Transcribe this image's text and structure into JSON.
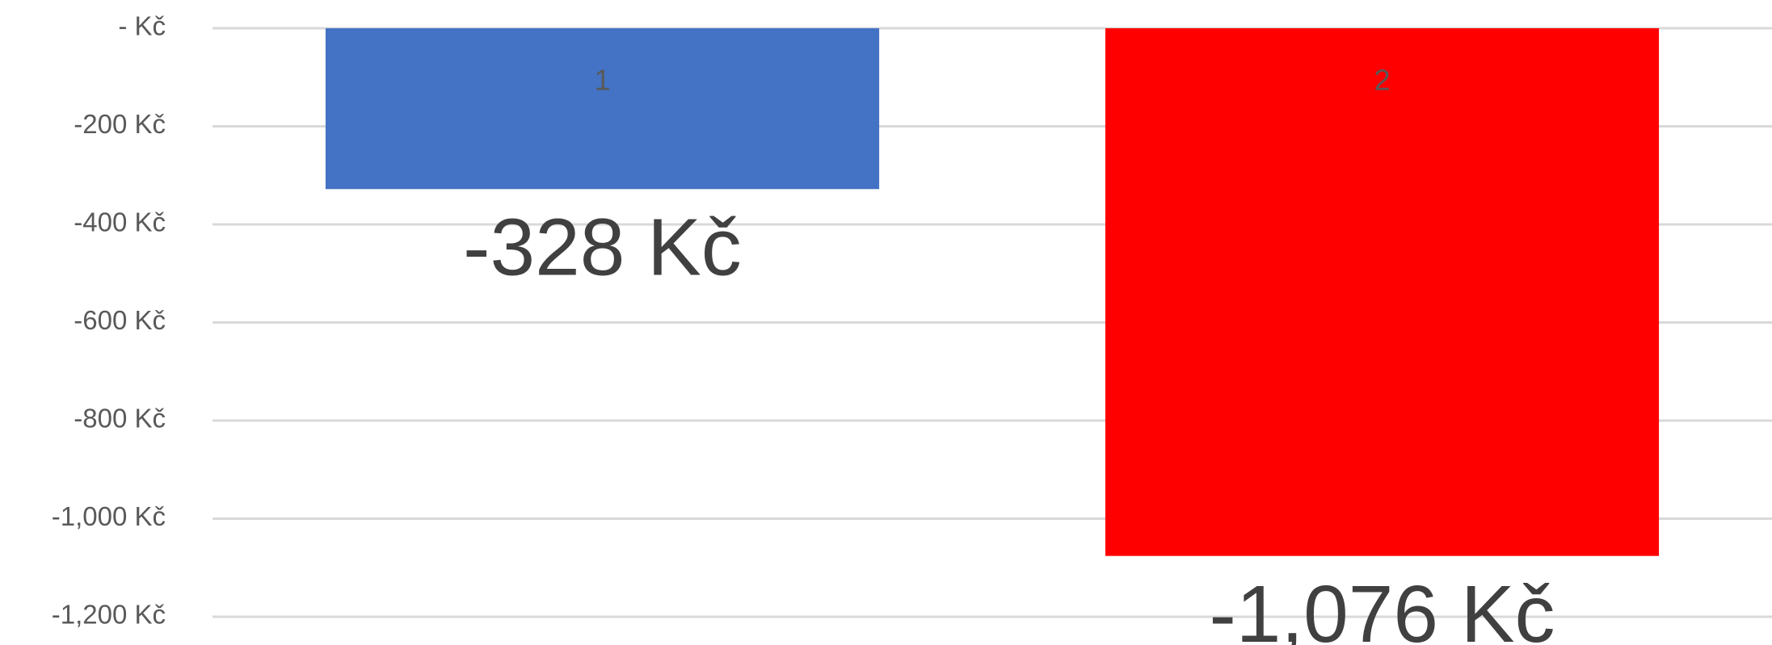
{
  "chart_data": {
    "type": "bar",
    "categories": [
      "1",
      "2"
    ],
    "series": [
      {
        "values": [
          -328,
          -1076
        ],
        "value_labels": [
          "-328 Kč",
          "-1,076 Kč"
        ],
        "colors": [
          "#4472c4",
          "#ff0000"
        ]
      }
    ],
    "ylim": [
      -1200,
      0
    ],
    "yticks": [
      {
        "value": 0,
        "label": "-   Kč"
      },
      {
        "value": -200,
        "label": "-200 Kč"
      },
      {
        "value": -400,
        "label": "-400 Kč"
      },
      {
        "value": -600,
        "label": "-600 Kč"
      },
      {
        "value": -800,
        "label": "-800 Kč"
      },
      {
        "value": -1000,
        "label": "-1,000 Kč"
      },
      {
        "value": -1200,
        "label": "-1,200 Kč"
      }
    ],
    "grid": true
  }
}
